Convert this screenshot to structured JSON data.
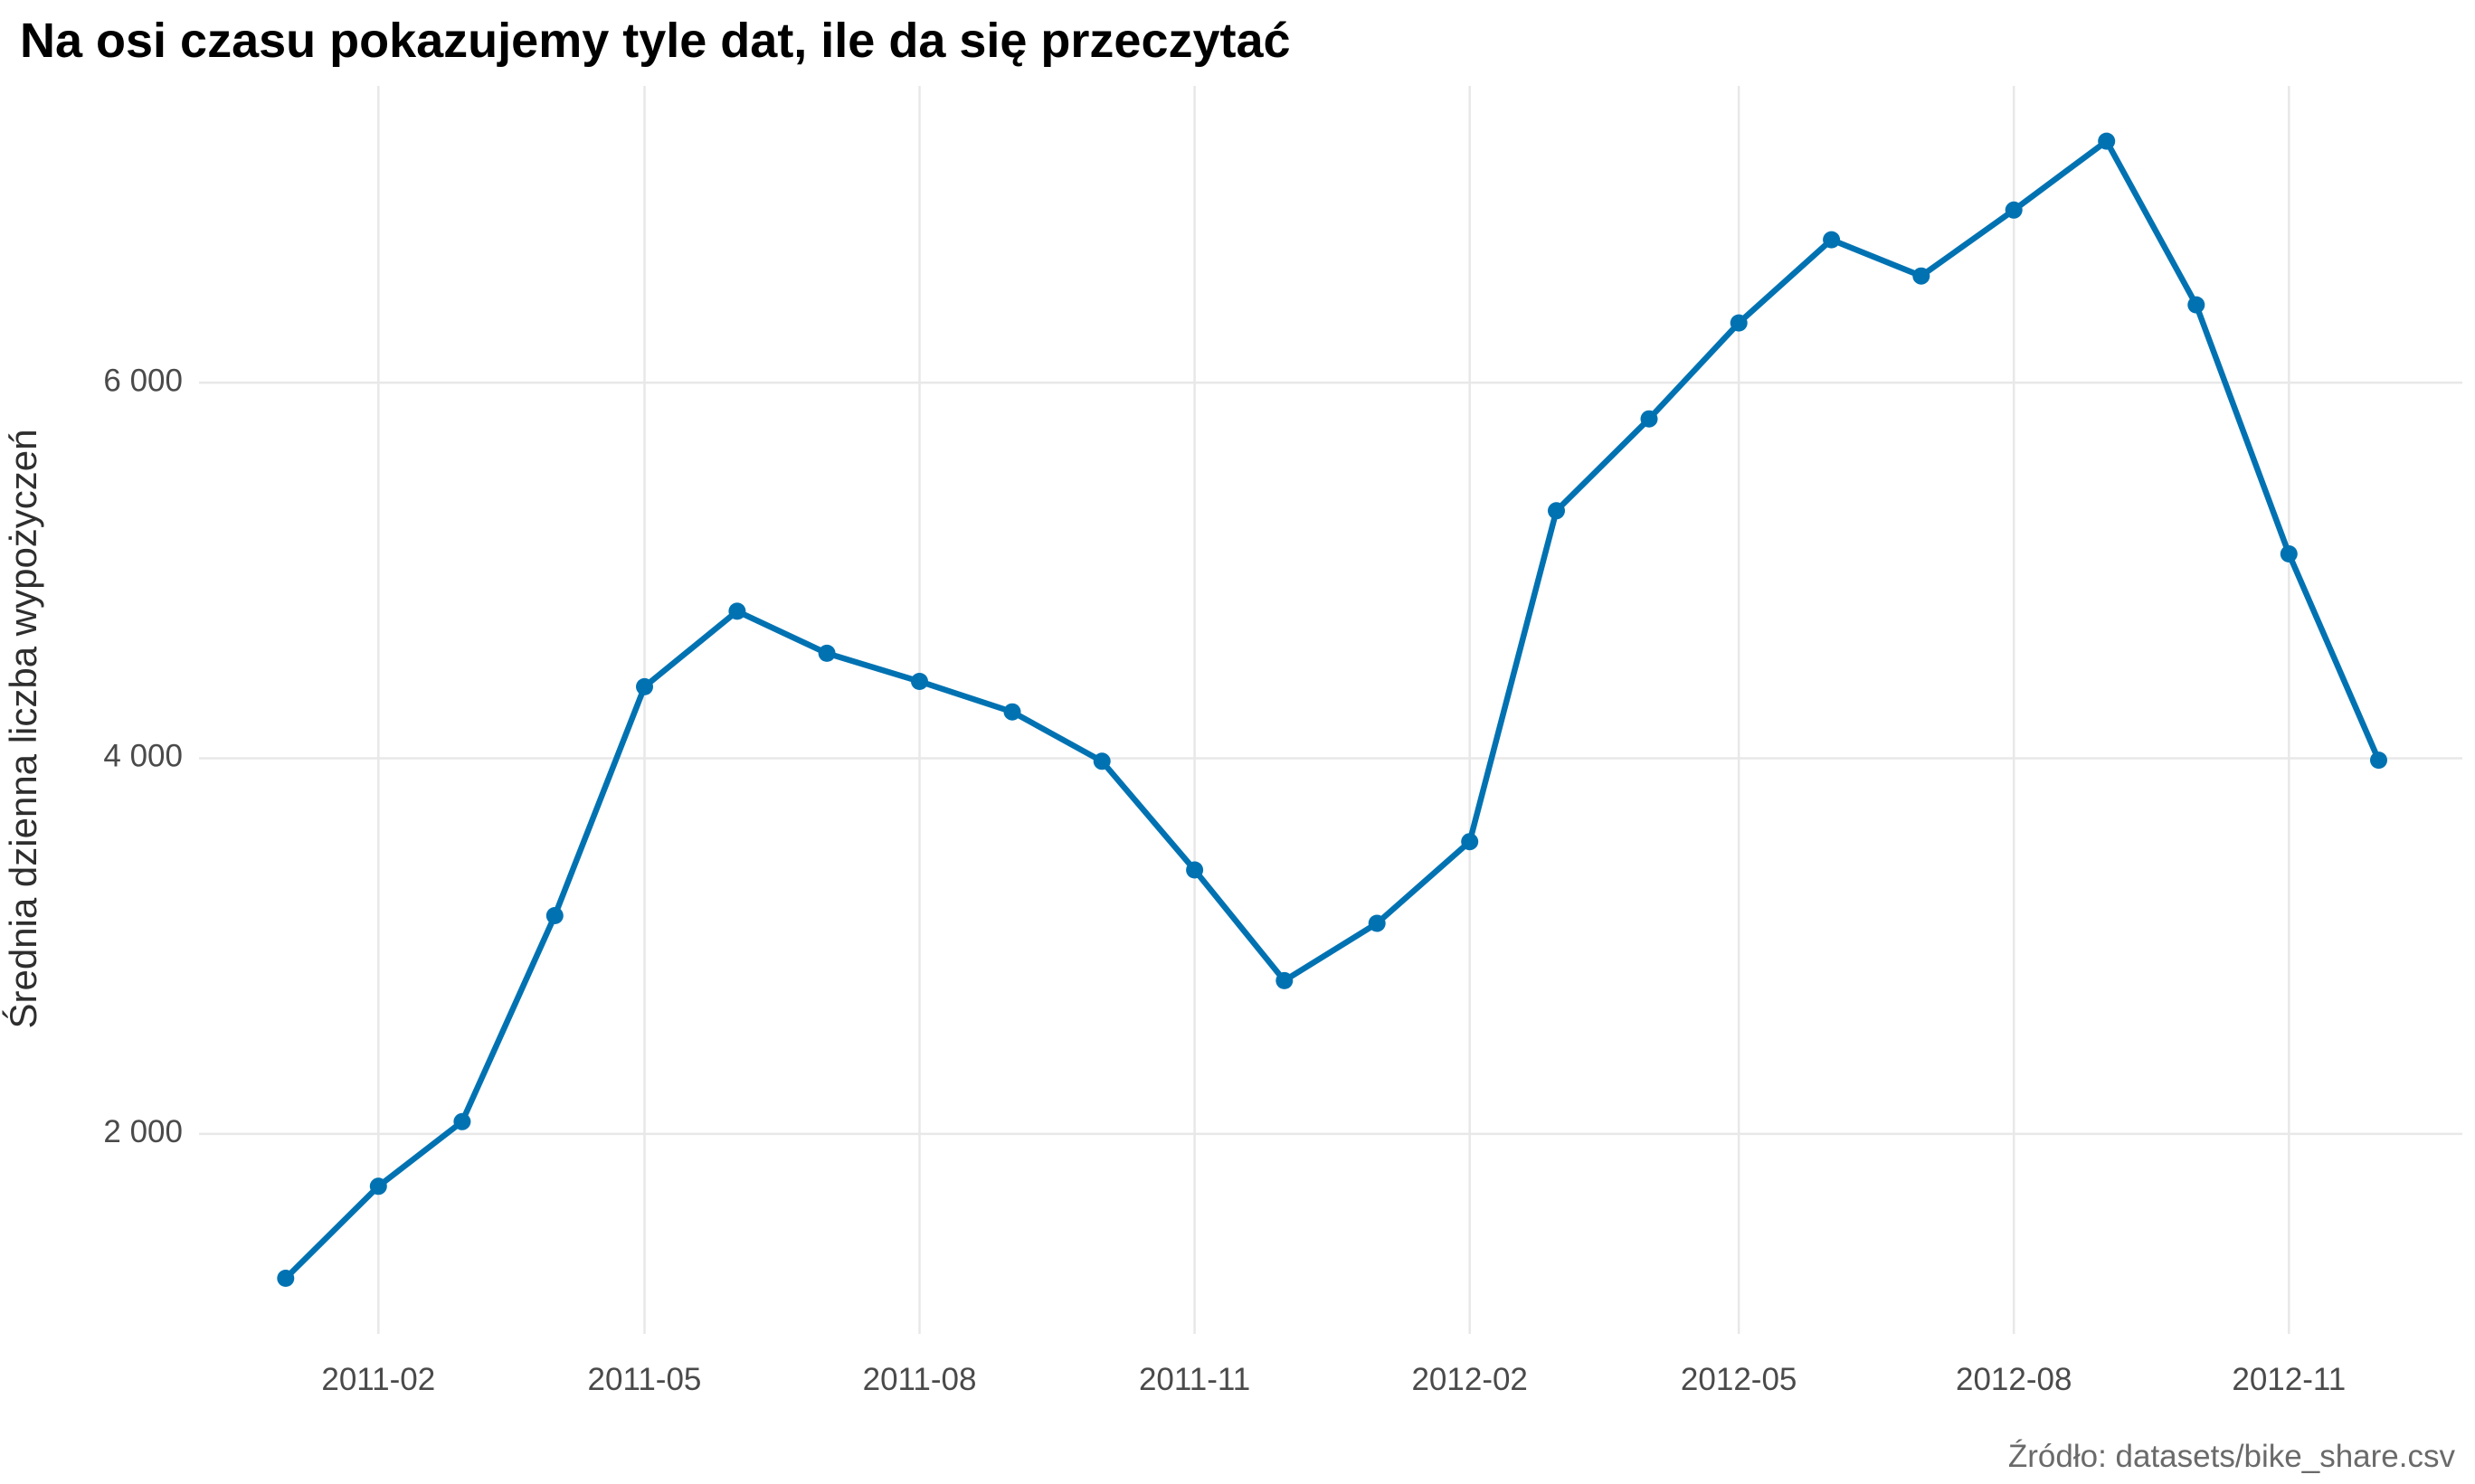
{
  "chart_data": {
    "type": "line",
    "title": "Na osi czasu pokazujemy tyle dat, ile da się przeczytać",
    "xlabel": "",
    "ylabel": "Średnia dzienna liczba wypożyczeń",
    "caption": "Źródło: datasets/bike_share.csv",
    "x": [
      "2011-01-01",
      "2011-02-01",
      "2011-03-01",
      "2011-04-01",
      "2011-05-01",
      "2011-06-01",
      "2011-07-01",
      "2011-08-01",
      "2011-09-01",
      "2011-10-01",
      "2011-11-01",
      "2011-12-01",
      "2012-01-01",
      "2012-02-01",
      "2012-03-01",
      "2012-04-01",
      "2012-05-01",
      "2012-06-01",
      "2012-07-01",
      "2012-08-01",
      "2012-09-01",
      "2012-10-01",
      "2012-11-01",
      "2012-12-01"
    ],
    "series": [
      {
        "values": [
          1231,
          1721,
          2065,
          3162,
          4381,
          4783,
          4559,
          4409,
          4247,
          3984,
          3405,
          2816,
          3121,
          3556,
          5318,
          5807,
          6318,
          6761,
          6568,
          6919,
          7286,
          6414,
          5088,
          3990
        ],
        "color": "#0072B2"
      }
    ],
    "x_ticks": [
      "2011-02",
      "2011-05",
      "2011-08",
      "2011-11",
      "2012-02",
      "2012-05",
      "2012-08",
      "2012-11"
    ],
    "x_tick_dates": [
      "2011-02-01",
      "2011-05-01",
      "2011-08-01",
      "2011-11-01",
      "2012-02-01",
      "2012-05-01",
      "2012-08-01",
      "2012-11-01"
    ],
    "y_ticks": [
      2000,
      4000,
      6000
    ],
    "y_tick_labels": [
      "2 000",
      "4 000",
      "6 000"
    ],
    "xlim": [
      "2010-12-03",
      "2012-12-29"
    ],
    "ylim": [
      935,
      7580
    ],
    "grid": true,
    "legend": "none",
    "line_color": "#0072B2",
    "grid_color": "#e8e8e8"
  }
}
